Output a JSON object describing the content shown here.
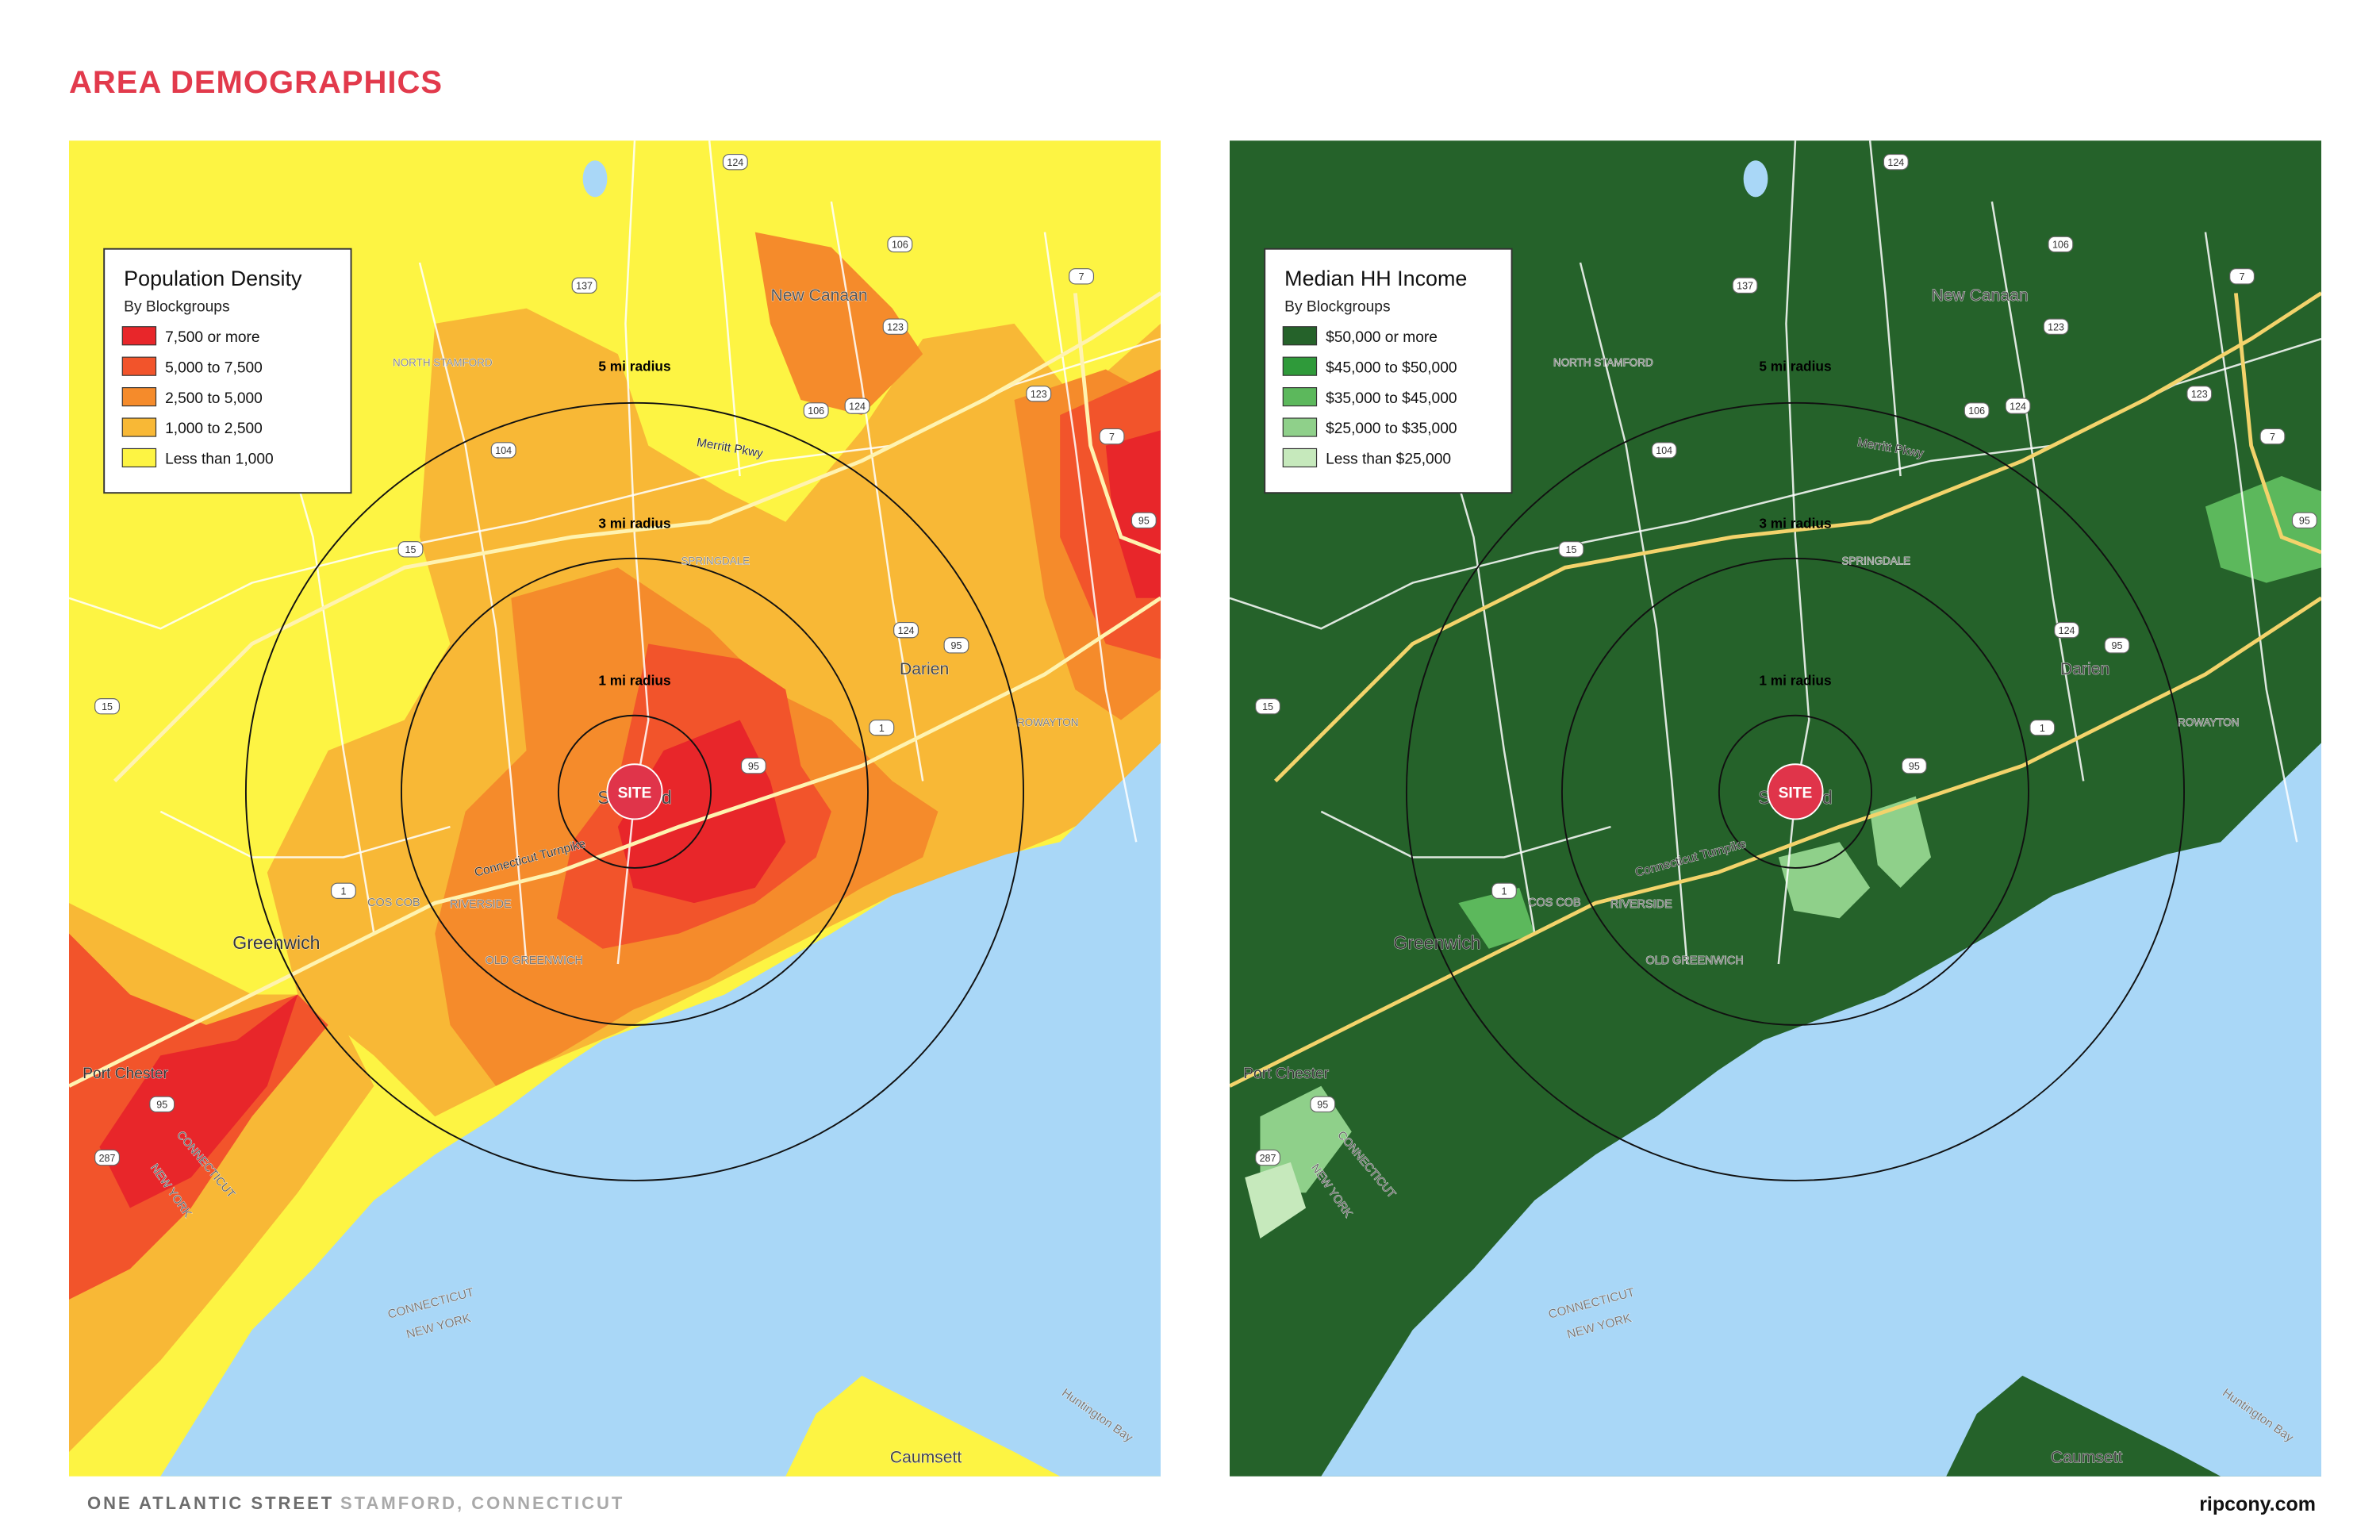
{
  "header": {
    "title": "AREA DEMOGRAPHICS"
  },
  "maps": [
    {
      "legend": {
        "title": "Population Density",
        "subtitle": "By Blockgroups",
        "items": [
          {
            "label": "7,500 or more",
            "color": "#e8262a"
          },
          {
            "label": "5,000 to 7,500",
            "color": "#f2542b"
          },
          {
            "label": "2,500 to 5,000",
            "color": "#f58b2b"
          },
          {
            "label": "1,000 to 2,500",
            "color": "#f8b836"
          },
          {
            "label": "Less than 1,000",
            "color": "#fdf443"
          }
        ]
      },
      "labels": [
        "5 mi radius",
        "3 mi radius",
        "1 mi radius",
        "New Canaan",
        "NORTH STAMFORD",
        "Merritt Pkwy",
        "SPRINGDALE",
        "Darien",
        "ROWAYTON",
        "Stamford",
        "Connecticut Turnpike",
        "COS COB",
        "RIVERSIDE",
        "OLD GREENWICH",
        "Greenwich",
        "Port Chester",
        "CONNECTICUT",
        "NEW YORK",
        "CONNECTICUT",
        "NEW YORK",
        "Huntington Bay",
        "Caumsett"
      ],
      "site": "SITE",
      "shields": [
        "124",
        "106",
        "137",
        "123",
        "7",
        "104",
        "15",
        "106",
        "124",
        "123",
        "7",
        "95",
        "124",
        "95",
        "1",
        "95",
        "1",
        "15",
        "95",
        "287"
      ]
    },
    {
      "legend": {
        "title": "Median HH Income",
        "subtitle": "By Blockgroups",
        "items": [
          {
            "label": "$50,000 or more",
            "color": "#25622a"
          },
          {
            "label": "$45,000 to $50,000",
            "color": "#2f9a3a"
          },
          {
            "label": "$35,000 to $45,000",
            "color": "#5cb85c"
          },
          {
            "label": "$25,000 to $35,000",
            "color": "#8fd08a"
          },
          {
            "label": "Less than $25,000",
            "color": "#c6e9bc"
          }
        ]
      },
      "labels": [
        "5 mi radius",
        "3 mi radius",
        "1 mi radius",
        "New Canaan",
        "NORTH STAMFORD",
        "Merritt Pkwy",
        "SPRINGDALE",
        "Darien",
        "ROWAYTON",
        "Stamford",
        "Connecticut Turnpike",
        "COS COB",
        "RIVERSIDE",
        "OLD GREENWICH",
        "Greenwich",
        "Port Chester",
        "CONNECTICUT",
        "NEW YORK",
        "CONNECTICUT",
        "NEW YORK",
        "Huntington Bay",
        "Caumsett"
      ],
      "site": "SITE",
      "shields": [
        "124",
        "106",
        "137",
        "123",
        "7",
        "104",
        "15",
        "106",
        "124",
        "123",
        "7",
        "95",
        "124",
        "95",
        "1",
        "95",
        "1",
        "15",
        "95",
        "287"
      ]
    }
  ],
  "footer": {
    "address": "ONE ATLANTIC STREET",
    "city": "STAMFORD, CONNECTICUT",
    "website": "ripcony.com"
  }
}
